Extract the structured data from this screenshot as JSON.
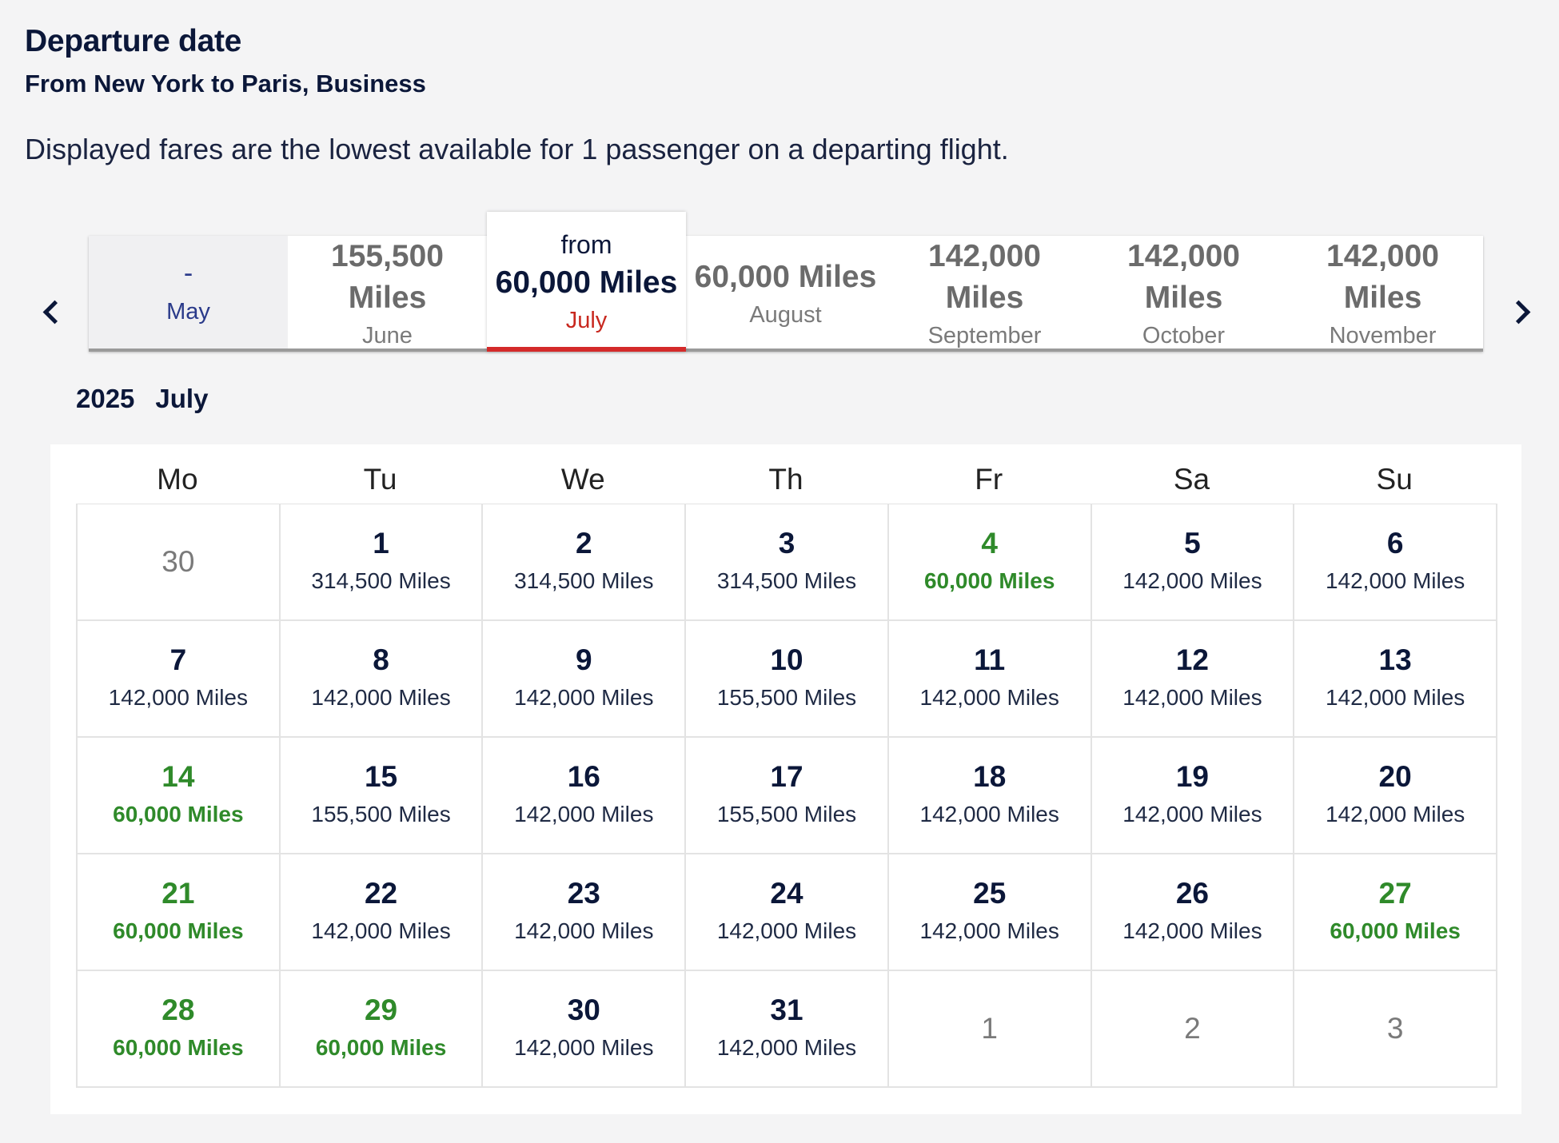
{
  "header": {
    "title": "Departure date",
    "subtitle": "From New York to Paris, Business",
    "description": "Displayed fares are the lowest available for 1 passenger on a departing flight."
  },
  "months": [
    {
      "name": "May",
      "price": "-",
      "state": "disabled"
    },
    {
      "name": "June",
      "price_line1": "155,500",
      "price_line2": "Miles"
    },
    {
      "name": "July",
      "prefix": "from",
      "price": "60,000 Miles",
      "state": "selected"
    },
    {
      "name": "August",
      "price": "60,000 Miles"
    },
    {
      "name": "September",
      "price_line1": "142,000",
      "price_line2": "Miles"
    },
    {
      "name": "October",
      "price_line1": "142,000",
      "price_line2": "Miles"
    },
    {
      "name": "November",
      "price_line1": "142,000",
      "price_line2": "Miles"
    }
  ],
  "calendar": {
    "year": "2025",
    "month": "July",
    "weekdays": [
      "Mo",
      "Tu",
      "We",
      "Th",
      "Fr",
      "Sa",
      "Su"
    ],
    "days": [
      {
        "day": "30",
        "miles": "",
        "type": "other"
      },
      {
        "day": "1",
        "miles": "314,500 Miles",
        "type": "normal"
      },
      {
        "day": "2",
        "miles": "314,500 Miles",
        "type": "normal"
      },
      {
        "day": "3",
        "miles": "314,500 Miles",
        "type": "normal"
      },
      {
        "day": "4",
        "miles": "60,000 Miles",
        "type": "low"
      },
      {
        "day": "5",
        "miles": "142,000 Miles",
        "type": "normal"
      },
      {
        "day": "6",
        "miles": "142,000 Miles",
        "type": "normal"
      },
      {
        "day": "7",
        "miles": "142,000 Miles",
        "type": "normal"
      },
      {
        "day": "8",
        "miles": "142,000 Miles",
        "type": "normal"
      },
      {
        "day": "9",
        "miles": "142,000 Miles",
        "type": "normal"
      },
      {
        "day": "10",
        "miles": "155,500 Miles",
        "type": "normal"
      },
      {
        "day": "11",
        "miles": "142,000 Miles",
        "type": "normal"
      },
      {
        "day": "12",
        "miles": "142,000 Miles",
        "type": "normal"
      },
      {
        "day": "13",
        "miles": "142,000 Miles",
        "type": "normal"
      },
      {
        "day": "14",
        "miles": "60,000 Miles",
        "type": "low"
      },
      {
        "day": "15",
        "miles": "155,500 Miles",
        "type": "normal"
      },
      {
        "day": "16",
        "miles": "142,000 Miles",
        "type": "normal"
      },
      {
        "day": "17",
        "miles": "155,500 Miles",
        "type": "normal"
      },
      {
        "day": "18",
        "miles": "142,000 Miles",
        "type": "normal"
      },
      {
        "day": "19",
        "miles": "142,000 Miles",
        "type": "normal"
      },
      {
        "day": "20",
        "miles": "142,000 Miles",
        "type": "normal"
      },
      {
        "day": "21",
        "miles": "60,000 Miles",
        "type": "low"
      },
      {
        "day": "22",
        "miles": "142,000 Miles",
        "type": "normal"
      },
      {
        "day": "23",
        "miles": "142,000 Miles",
        "type": "normal"
      },
      {
        "day": "24",
        "miles": "142,000 Miles",
        "type": "normal"
      },
      {
        "day": "25",
        "miles": "142,000 Miles",
        "type": "normal"
      },
      {
        "day": "26",
        "miles": "142,000 Miles",
        "type": "normal"
      },
      {
        "day": "27",
        "miles": "60,000 Miles",
        "type": "low"
      },
      {
        "day": "28",
        "miles": "60,000 Miles",
        "type": "low"
      },
      {
        "day": "29",
        "miles": "60,000 Miles",
        "type": "low"
      },
      {
        "day": "30",
        "miles": "142,000 Miles",
        "type": "normal"
      },
      {
        "day": "31",
        "miles": "142,000 Miles",
        "type": "normal"
      },
      {
        "day": "1",
        "miles": "",
        "type": "other"
      },
      {
        "day": "2",
        "miles": "",
        "type": "other"
      },
      {
        "day": "3",
        "miles": "",
        "type": "other"
      }
    ]
  },
  "icons": {
    "prev": "chevron-left-icon",
    "next": "chevron-right-icon"
  },
  "colors": {
    "low_fare": "#2f8a2a",
    "selected_accent": "#d42a2a",
    "text_primary": "#0b1739"
  }
}
